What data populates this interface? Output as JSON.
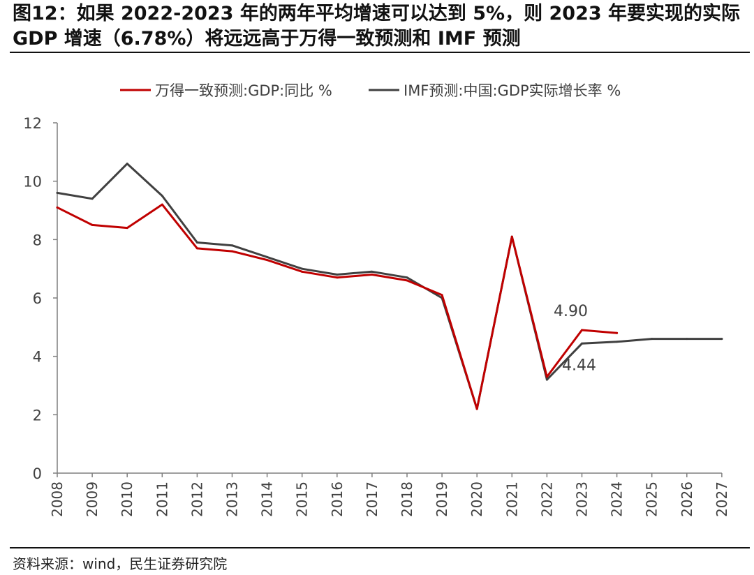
{
  "header": {
    "title": "图12：如果 2022-2023 年的两年平均增速可以达到 5%，则 2023 年要实现的实际 GDP 增速（6.78%）将远远高于万得一致预测和 IMF 预测"
  },
  "footer": {
    "source": "资料来源：wind，民生证券研究院"
  },
  "colors": {
    "wind_series": "#C00000",
    "imf_series": "#404040",
    "axis": "#7f7f7f",
    "text": "#404040"
  },
  "chart_data": {
    "type": "line",
    "title": "",
    "xlabel": "",
    "ylabel": "",
    "categories": [
      "2008",
      "2009",
      "2010",
      "2011",
      "2012",
      "2013",
      "2014",
      "2015",
      "2016",
      "2017",
      "2018",
      "2019",
      "2020",
      "2021",
      "2022",
      "2023",
      "2024",
      "2025",
      "2026",
      "2027"
    ],
    "ylim": [
      0,
      12
    ],
    "yticks": [
      "0",
      "2",
      "4",
      "6",
      "8",
      "10",
      "12"
    ],
    "legend_position": "top-center",
    "grid": false,
    "series": [
      {
        "name": "万得一致预测:GDP:同比 %",
        "color": "#C00000",
        "values": [
          9.1,
          8.5,
          8.4,
          9.2,
          7.7,
          7.6,
          7.3,
          6.9,
          6.7,
          6.8,
          6.6,
          6.1,
          2.2,
          8.1,
          3.3,
          4.9,
          4.8,
          null,
          null,
          null
        ]
      },
      {
        "name": "IMF预测:中国:GDP实际增长率 %",
        "color": "#404040",
        "values": [
          9.6,
          9.4,
          10.6,
          9.5,
          7.9,
          7.8,
          7.4,
          7.0,
          6.8,
          6.9,
          6.7,
          6.0,
          2.2,
          8.1,
          3.2,
          4.44,
          4.5,
          4.6,
          4.6,
          4.6
        ]
      }
    ],
    "annotations": [
      {
        "text": "4.90",
        "category": "2023",
        "series": 0
      },
      {
        "text": "4.44",
        "category": "2023",
        "series": 1
      }
    ]
  }
}
